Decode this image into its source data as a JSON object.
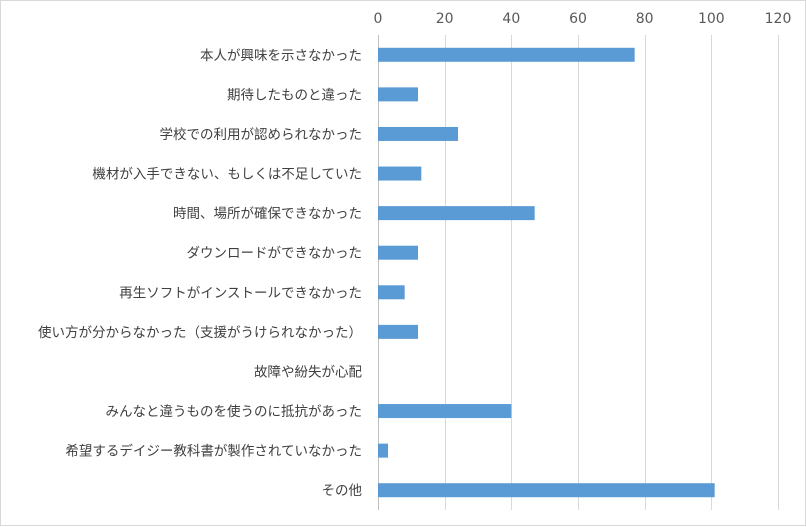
{
  "chart_data": {
    "type": "bar",
    "orientation": "horizontal",
    "categories": [
      "本人が興味を示さなかった",
      "期待したものと違った",
      "学校での利用が認められなかった",
      "機材が入手できない、もしくは不足していた",
      "時間、場所が確保できなかった",
      "ダウンロードができなかった",
      "再生ソフトがインストールできなかった",
      "使い方が分からなかった（支援がうけられなかった）",
      "故障や紛失が心配",
      "みんなと違うものを使うのに抵抗があった",
      "希望するデイジー教科書が製作されていなかった",
      "その他"
    ],
    "values": [
      77,
      12,
      24,
      13,
      47,
      12,
      8,
      12,
      0,
      40,
      3,
      101
    ],
    "xlim": [
      0,
      120
    ],
    "ticks": [
      "0",
      "20",
      "40",
      "60",
      "80",
      "100",
      "120"
    ],
    "tick_values": [
      0,
      20,
      40,
      60,
      80,
      100,
      120
    ],
    "x_axis_position": "top",
    "grid": true,
    "bar_color": "#5b9bd5",
    "grid_color": "#d9d9d9"
  }
}
